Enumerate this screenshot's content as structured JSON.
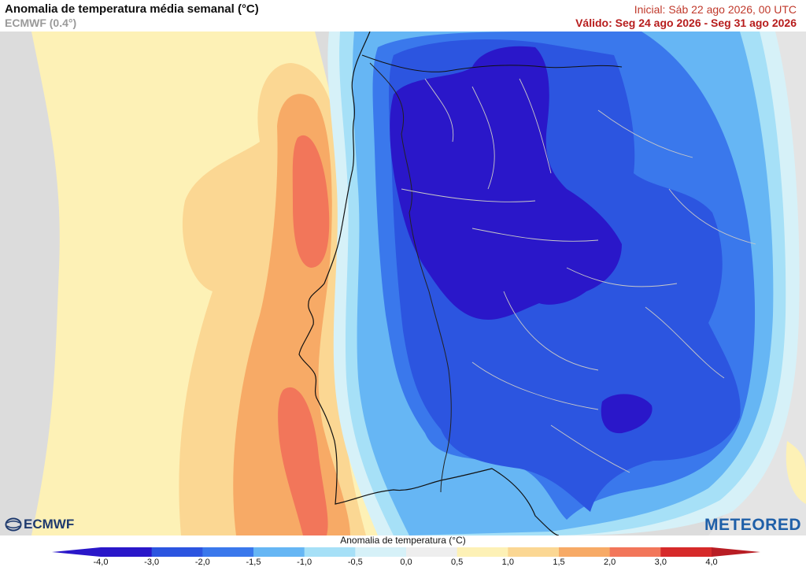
{
  "header": {
    "title": "Anomalia de temperatura média semanal (°C)",
    "model": "ECMWF (0.4°)",
    "init": "Inicial: Sáb 22 ago 2026, 00 UTC",
    "valid": "Válido: Seg 24 ago 2026 - Seg 31 ago 2026"
  },
  "logos": {
    "left": "ECMWF",
    "right": "METEORED"
  },
  "legend": {
    "title": "Anomalia de temperatura (°C)",
    "ticks": [
      "-4,0",
      "-3,0",
      "-2,0",
      "-1,5",
      "-1,0",
      "-0,5",
      "0,0",
      "0,5",
      "1,0",
      "1,5",
      "2,0",
      "3,0",
      "4,0"
    ],
    "colors": [
      "#2a17c9",
      "#2c55e0",
      "#3a78ec",
      "#66b6f4",
      "#a6e0f7",
      "#d6f1f8",
      "#eeeeee",
      "#fdf1b6",
      "#fbd793",
      "#f7aa66",
      "#f2765a",
      "#d62a2a"
    ]
  },
  "map_colors": {
    "ocean_grey": "#dcdcdc",
    "warm_light": "#fdf1b6",
    "warm_mid": "#fbd793",
    "warm_orange": "#f7aa66",
    "warm_red": "#f2765a",
    "cold_lightest": "#d6f1f8",
    "cold_light": "#a6e0f7",
    "cold_mid": "#66b6f4",
    "cold_blue": "#3a78ec",
    "cold_deep": "#2c55e0",
    "cold_darkest": "#2a17c9",
    "border": "#c8c8c8",
    "coast": "#111111"
  }
}
